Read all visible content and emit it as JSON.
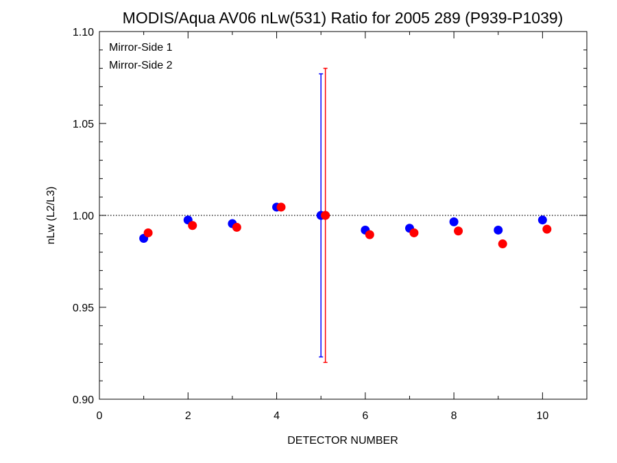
{
  "chart_data": {
    "type": "scatter",
    "title": "MODIS/Aqua AV06 nLw(531) Ratio for 2005 289 (P939-P1039)",
    "xlabel": "DETECTOR NUMBER",
    "ylabel": "nLw (L2/L3)",
    "xlim": [
      0,
      11
    ],
    "ylim": [
      0.9,
      1.1
    ],
    "xticks": [
      0,
      2,
      4,
      6,
      8,
      10
    ],
    "xtick_labels": [
      "0",
      "2",
      "4",
      "6",
      "8",
      "10"
    ],
    "yticks": [
      0.9,
      0.95,
      1.0,
      1.05,
      1.1
    ],
    "ytick_labels": [
      "0.90",
      "0.95",
      "1.00",
      "1.05",
      "1.10"
    ],
    "reference_line": 1.0,
    "legend_position": "top-left",
    "series": [
      {
        "name": "Mirror-Side 1",
        "color": "#0000ff",
        "x": [
          1,
          2,
          3,
          4,
          5,
          6,
          7,
          8,
          9,
          10
        ],
        "y": [
          0.9875,
          0.9975,
          0.9955,
          1.0045,
          1.0,
          0.992,
          0.993,
          0.9965,
          0.992,
          0.9975
        ],
        "error_bar": {
          "x": 5,
          "low": 0.923,
          "high": 1.077
        }
      },
      {
        "name": "Mirror-Side 2",
        "color": "#ff0000",
        "x": [
          1.1,
          2.1,
          3.1,
          4.1,
          5.1,
          6.1,
          7.1,
          8.1,
          9.1,
          10.1
        ],
        "y": [
          0.9905,
          0.9945,
          0.9935,
          1.0045,
          1.0,
          0.9895,
          0.9905,
          0.9915,
          0.9845,
          0.9925
        ],
        "error_bar": {
          "x": 5.1,
          "low": 0.92,
          "high": 1.08
        }
      }
    ]
  }
}
